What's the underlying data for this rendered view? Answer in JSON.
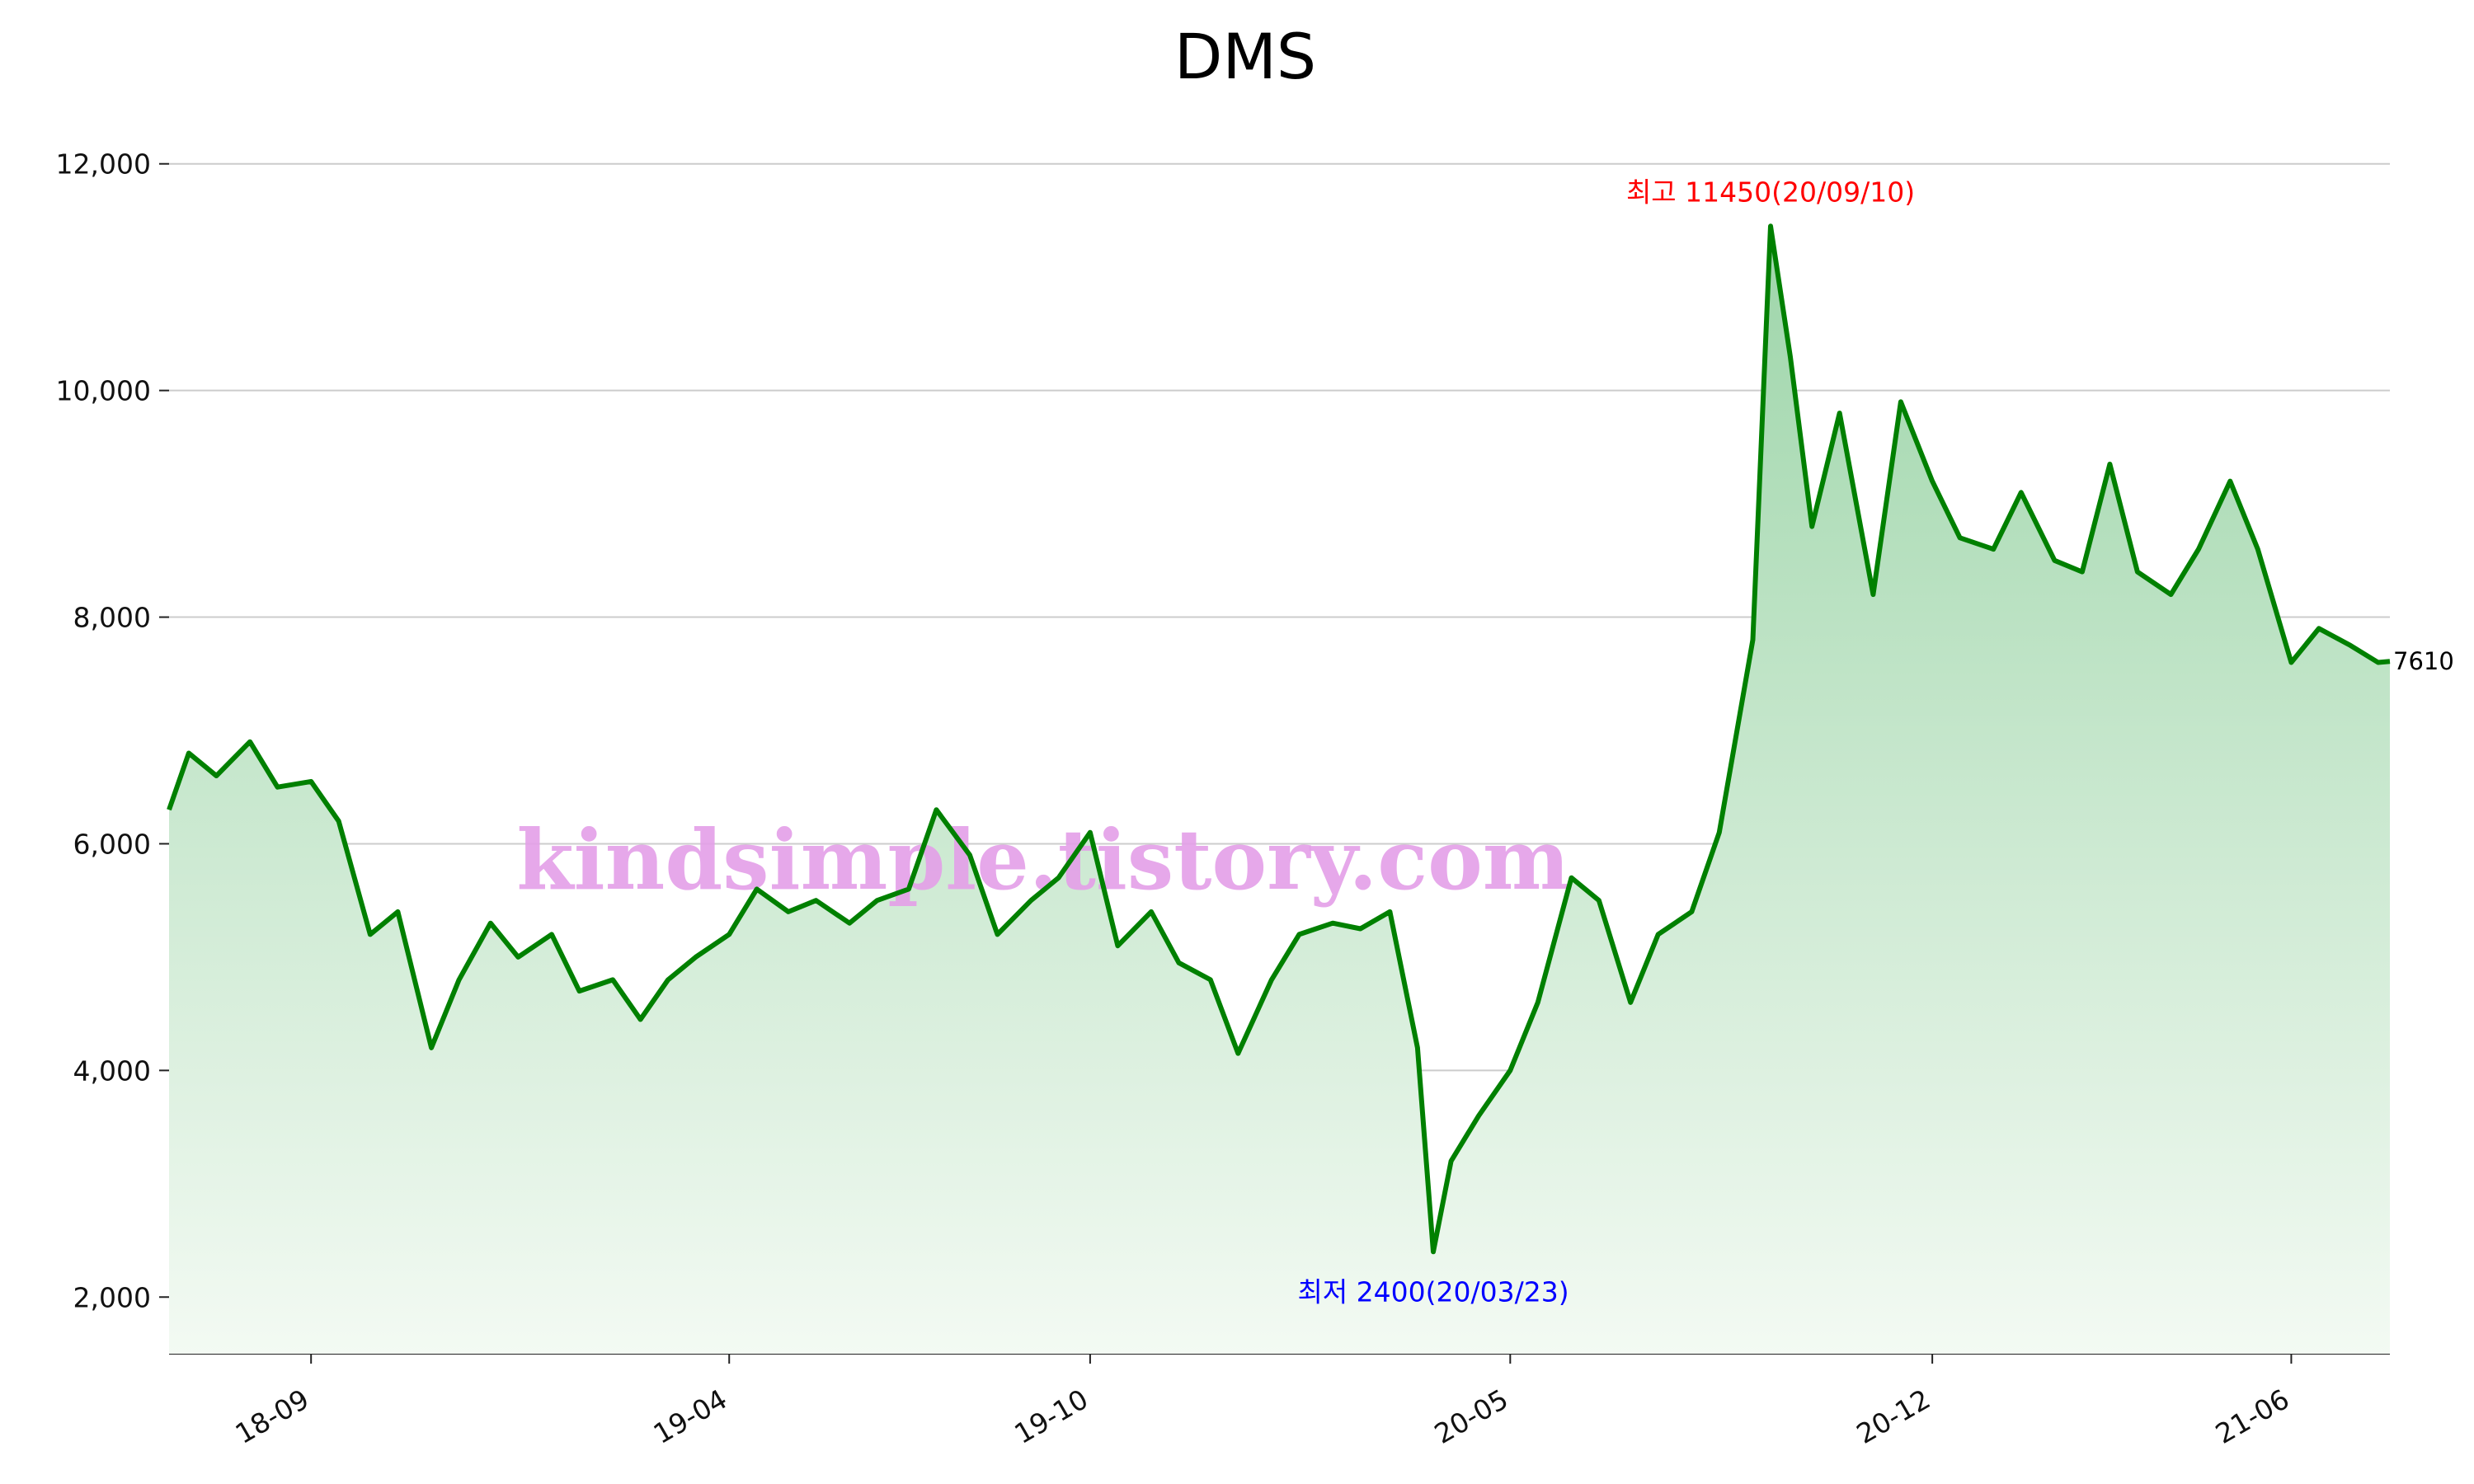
{
  "chart_data": {
    "type": "area",
    "title": "DMS",
    "xlabel": "",
    "ylabel": "",
    "ylim": [
      1500,
      12500
    ],
    "yticks": [
      2000,
      4000,
      6000,
      8000,
      10000,
      12000
    ],
    "ytick_labels": [
      "2,000",
      "4,000",
      "6,000",
      "8,000",
      "10,000",
      "12,000"
    ],
    "xticks": [
      {
        "label": "18-09",
        "date": "2018-09-01"
      },
      {
        "label": "19-04",
        "date": "2019-04-01"
      },
      {
        "label": "19-10",
        "date": "2019-10-01"
      },
      {
        "label": "20-05",
        "date": "2020-05-01"
      },
      {
        "label": "20-12",
        "date": "2020-12-01"
      },
      {
        "label": "21-06",
        "date": "2021-06-01"
      }
    ],
    "x_range": [
      "2018-06-21",
      "2021-07-21"
    ],
    "grid": "horizontal",
    "line_color": "#008000",
    "fill_top_color": "#9dd5a9",
    "fill_bottom_color": "#f3faf3",
    "series": [
      {
        "x": [
          "2018-06-21",
          "2018-07-01",
          "2018-07-15",
          "2018-08-01",
          "2018-08-15",
          "2018-09-01",
          "2018-09-15",
          "2018-10-01",
          "2018-10-15",
          "2018-11-01",
          "2018-11-15",
          "2018-12-01",
          "2018-12-15",
          "2019-01-01",
          "2019-01-15",
          "2019-02-01",
          "2019-02-15",
          "2019-03-01",
          "2019-03-15",
          "2019-04-01",
          "2019-04-15",
          "2019-05-01",
          "2019-05-15",
          "2019-06-01",
          "2019-06-15",
          "2019-07-01",
          "2019-07-15",
          "2019-08-01",
          "2019-08-15",
          "2019-09-01",
          "2019-09-15",
          "2019-10-01",
          "2019-10-15",
          "2019-11-01",
          "2019-11-15",
          "2019-12-01",
          "2019-12-15",
          "2020-01-01",
          "2020-01-15",
          "2020-02-01",
          "2020-02-15",
          "2020-03-01",
          "2020-03-15",
          "2020-03-23",
          "2020-04-01",
          "2020-04-15",
          "2020-05-01",
          "2020-05-15",
          "2020-06-01",
          "2020-06-15",
          "2020-07-01",
          "2020-07-15",
          "2020-08-01",
          "2020-08-15",
          "2020-09-01",
          "2020-09-10",
          "2020-09-20",
          "2020-10-01",
          "2020-10-15",
          "2020-11-01",
          "2020-11-15",
          "2020-12-01",
          "2020-12-15",
          "2021-01-01",
          "2021-01-15",
          "2021-02-01",
          "2021-02-15",
          "2021-03-01",
          "2021-03-15",
          "2021-04-01",
          "2021-04-15",
          "2021-05-01",
          "2021-05-15",
          "2021-06-01",
          "2021-06-15",
          "2021-07-01",
          "2021-07-15",
          "2021-07-21"
        ],
        "y": [
          6300,
          6800,
          6600,
          6900,
          6500,
          6550,
          6200,
          5200,
          5400,
          4200,
          4800,
          5300,
          5000,
          5200,
          4700,
          4800,
          4450,
          4800,
          5000,
          5200,
          5600,
          5400,
          5500,
          5300,
          5500,
          5600,
          6300,
          5900,
          5200,
          5500,
          5700,
          6100,
          5100,
          5400,
          4950,
          4800,
          4150,
          4800,
          5200,
          5300,
          5250,
          5400,
          4200,
          2400,
          3200,
          3600,
          4000,
          4600,
          5700,
          5500,
          4600,
          5200,
          5400,
          6100,
          7800,
          11450,
          10300,
          8800,
          9800,
          8200,
          9900,
          9200,
          8700,
          8600,
          9100,
          8500,
          8400,
          9350,
          8400,
          8200,
          8600,
          9200,
          8600,
          7600,
          7900,
          7750,
          7600,
          7610
        ]
      }
    ],
    "annotations": [
      {
        "text": "최고 11450(20/09/10)",
        "x": "2020-09-10",
        "y": 11450,
        "color": "#ff0000"
      },
      {
        "text": "최저 2400(20/03/23)",
        "x": "2020-03-23",
        "y": 2400,
        "color": "#0000ff"
      }
    ],
    "last_value_label": "7610",
    "watermark": "kindsimple.tistory.com"
  }
}
